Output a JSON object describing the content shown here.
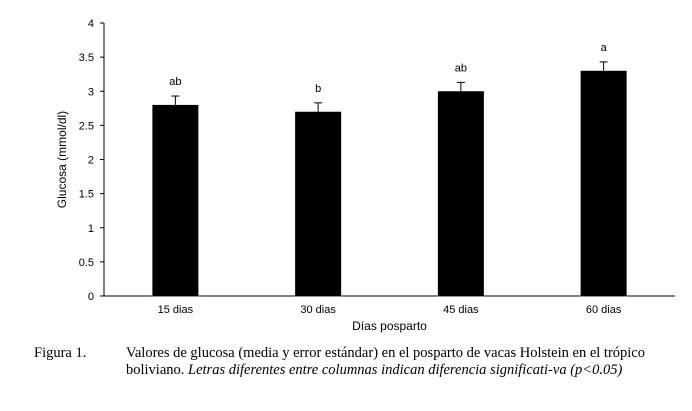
{
  "chart_data": {
    "type": "bar",
    "categories": [
      "15 dias",
      "30 dias",
      "45 dias",
      "60 dias"
    ],
    "values": [
      2.8,
      2.7,
      3.0,
      3.3
    ],
    "errors": [
      0.13,
      0.13,
      0.13,
      0.13
    ],
    "significance_labels": [
      "ab",
      "b",
      "ab",
      "a"
    ],
    "xlabel": "Días posparto",
    "ylabel": "Glucosa (mmol/dl)",
    "ylim": [
      0,
      4
    ],
    "yticks": [
      "0",
      "0.5",
      "1",
      "1.5",
      "2",
      "2.5",
      "3",
      "3.5",
      "4"
    ],
    "bar_color": "#000000",
    "grid": false
  },
  "caption": {
    "label": "Figura 1.",
    "text": "Valores de glucosa (media y error estándar) en el posparto de vacas Holstein en el trópico boliviano.",
    "italic_text": "Letras diferentes entre columnas indican diferencia significati-va (p<0.05)"
  }
}
